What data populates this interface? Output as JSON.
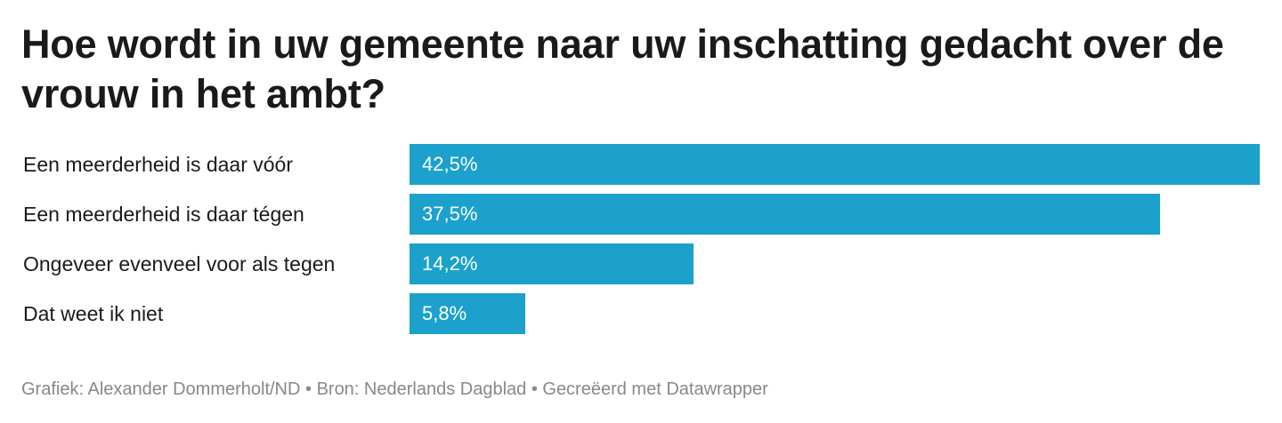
{
  "chart_data": {
    "type": "bar",
    "orientation": "horizontal",
    "title": "Hoe wordt in uw gemeente naar uw inschatting gedacht over de vrouw in het ambt?",
    "categories": [
      "Een meerderheid is daar vóór",
      "Een meerderheid is daar tégen",
      "Ongeveer evenveel voor als tegen",
      "Dat weet ik niet"
    ],
    "values": [
      42.5,
      37.5,
      14.2,
      5.8
    ],
    "value_labels": [
      "42,5%",
      "37,5%",
      "14,2%",
      "5,8%"
    ],
    "xlim": [
      0,
      42.5
    ],
    "grid": false,
    "bar_color": "#1ba1cc"
  },
  "footer": {
    "credit": "Grafiek: Alexander Dommerholt/ND • Bron: Nederlands Dagblad • Gecreëerd met Datawrapper"
  }
}
